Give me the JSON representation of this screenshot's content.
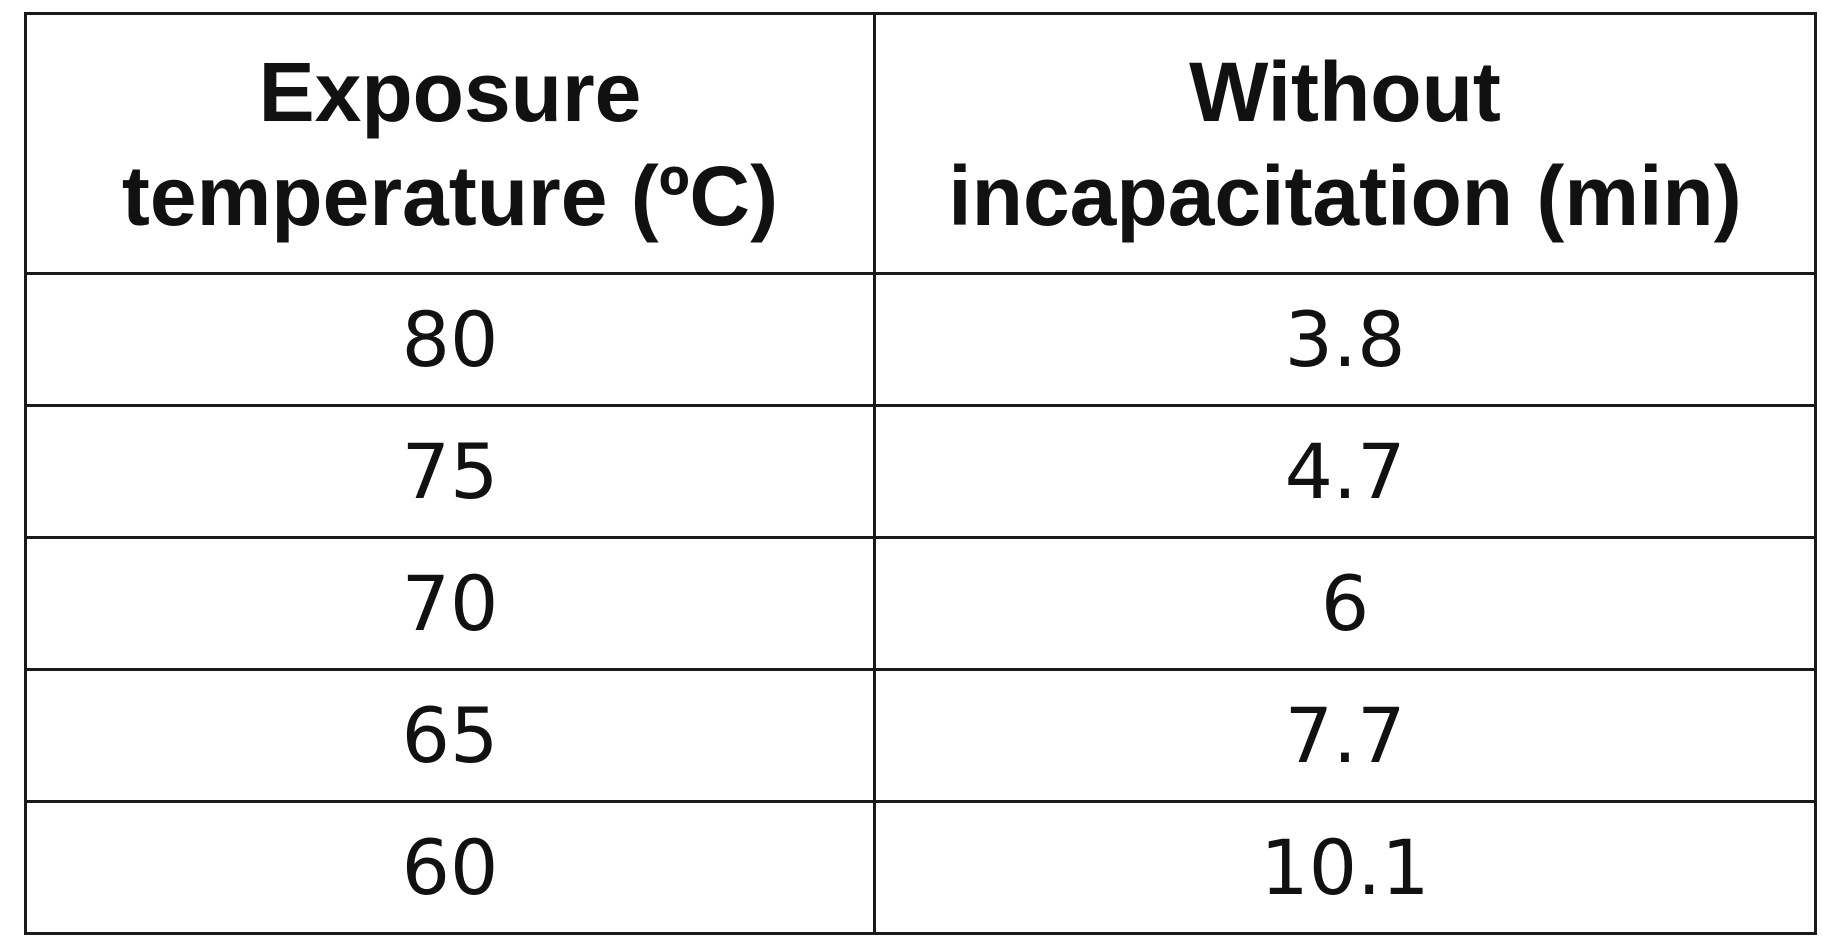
{
  "table": {
    "headers": [
      {
        "line1": "Exposure",
        "line2": "temperature (ºC)"
      },
      {
        "line1": "Without",
        "line2": "incapacitation (min)"
      }
    ],
    "rows": [
      {
        "temperature": "80",
        "time": "3.8"
      },
      {
        "temperature": "75",
        "time": "4.7"
      },
      {
        "temperature": "70",
        "time": "6"
      },
      {
        "temperature": "65",
        "time": "7.7"
      },
      {
        "temperature": "60",
        "time": "10.1"
      }
    ]
  }
}
